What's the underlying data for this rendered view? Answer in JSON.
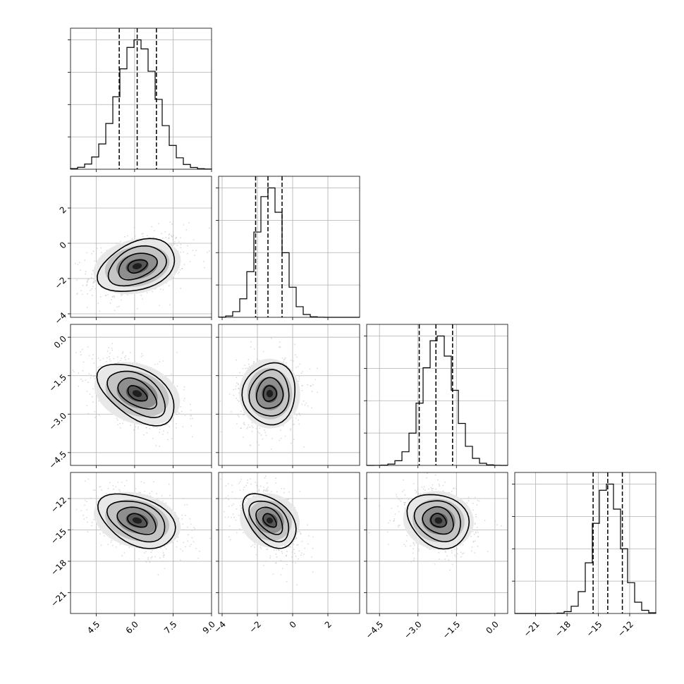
{
  "chart_data": {
    "type": "corner",
    "grid": true,
    "parameters": [
      {
        "index": 0,
        "range": [
          3.5,
          9.0
        ],
        "ticks": [
          4.5,
          6.0,
          7.5,
          9.0
        ],
        "tick_labels": [
          "4.5",
          "6.0",
          "7.5",
          "9.0"
        ],
        "mean": 6.1,
        "std": 0.75,
        "quantiles": [
          5.4,
          6.1,
          6.85
        ]
      },
      {
        "index": 1,
        "range": [
          -4.2,
          3.8
        ],
        "ticks": [
          -4,
          -2,
          0,
          2
        ],
        "tick_labels": [
          "−4",
          "−2",
          "0",
          "2"
        ],
        "mean": -1.3,
        "std": 0.75,
        "quantiles": [
          -2.1,
          -1.4,
          -0.6
        ]
      },
      {
        "index": 2,
        "range": [
          -5.0,
          0.5
        ],
        "ticks": [
          -4.5,
          -3.0,
          -1.5,
          0.0
        ],
        "tick_labels": [
          "−4.5",
          "−3.0",
          "−1.5",
          "0.0"
        ],
        "mean": -2.2,
        "std": 0.6,
        "quantiles": [
          -2.95,
          -2.3,
          -1.65
        ]
      },
      {
        "index": 3,
        "range": [
          -23.0,
          -9.5
        ],
        "ticks": [
          -21,
          -18,
          -15,
          -12
        ],
        "tick_labels": [
          "−21",
          "−18",
          "−15",
          "−12"
        ],
        "mean": -14.1,
        "std": 1.3,
        "quantiles": [
          -15.5,
          -14.1,
          -12.7
        ]
      }
    ],
    "correlations": {
      "1,0": 0.35,
      "2,0": -0.5,
      "2,1": 0.05,
      "3,0": -0.4,
      "3,1": -0.45,
      "3,2": -0.2
    },
    "contour_levels": [
      0.5,
      1.0,
      1.5,
      2.0
    ]
  }
}
